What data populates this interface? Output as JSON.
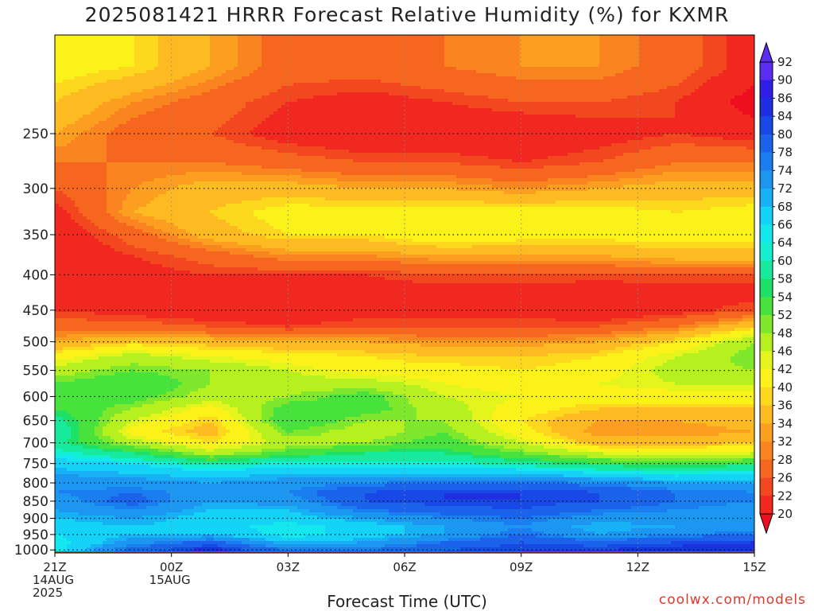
{
  "chart_data": {
    "type": "heatmap",
    "title": "2025081421 HRRR Forecast Relative Humidity (%) for KXMR",
    "xlabel": "Forecast Time (UTC)",
    "ylabel": "",
    "x_ticks": [
      {
        "hour": 0,
        "lines": [
          "21Z",
          "14AUG",
          "2025"
        ]
      },
      {
        "hour": 3,
        "lines": [
          "00Z",
          "15AUG"
        ]
      },
      {
        "hour": 6,
        "lines": [
          "03Z"
        ]
      },
      {
        "hour": 9,
        "lines": [
          "06Z"
        ]
      },
      {
        "hour": 12,
        "lines": [
          "09Z"
        ]
      },
      {
        "hour": 15,
        "lines": [
          "12Z"
        ]
      },
      {
        "hour": 18,
        "lines": [
          "15Z"
        ]
      }
    ],
    "xlim": [
      0,
      18
    ],
    "y_ticks": [
      250,
      300,
      350,
      400,
      450,
      500,
      550,
      600,
      650,
      700,
      750,
      800,
      850,
      900,
      950,
      1000
    ],
    "ylim": [
      1010,
      180
    ],
    "y_scale": "log",
    "colorbar": {
      "labels": [
        92,
        90,
        86,
        84,
        80,
        78,
        74,
        72,
        68,
        66,
        64,
        60,
        58,
        54,
        52,
        48,
        46,
        42,
        40,
        36,
        34,
        32,
        28,
        26,
        22,
        20
      ],
      "colors": [
        "#5a2df0",
        "#2f1ee6",
        "#1d2fe0",
        "#1848e6",
        "#1a63ea",
        "#1a7ef0",
        "#1b97f2",
        "#17b2f5",
        "#15d2f7",
        "#14e8ee",
        "#13f0d0",
        "#17ea9c",
        "#1fe066",
        "#47e23c",
        "#7fe82c",
        "#b6f01f",
        "#e3f51c",
        "#fbf21a",
        "#fdd81e",
        "#fdbb21",
        "#fc9f21",
        "#f98420",
        "#f6661f",
        "#f3481f",
        "#f0281f",
        "#ed0f20"
      ]
    },
    "grid": true,
    "rh_profiles": [
      {
        "pressure": [
          200,
          225,
          250,
          275,
          300,
          325,
          350,
          375,
          400,
          425,
          450,
          475,
          500,
          525,
          550,
          575,
          600,
          625,
          650,
          675,
          700,
          725,
          750,
          775,
          800,
          825,
          850,
          875,
          900,
          925,
          950,
          975,
          1000
        ]
      },
      {
        "hour": 0,
        "rh": [
          44,
          40,
          36,
          32,
          28,
          24,
          22,
          22,
          22,
          24,
          26,
          30,
          36,
          44,
          50,
          54,
          56,
          58,
          62,
          64,
          62,
          66,
          70,
          74,
          76,
          78,
          76,
          74,
          72,
          70,
          68,
          66,
          66
        ]
      },
      {
        "hour": 2,
        "rh": [
          42,
          34,
          30,
          32,
          34,
          36,
          30,
          26,
          24,
          22,
          24,
          30,
          40,
          50,
          54,
          58,
          56,
          52,
          48,
          44,
          50,
          60,
          68,
          72,
          76,
          80,
          82,
          78,
          74,
          72,
          72,
          76,
          82
        ]
      },
      {
        "hour": 4,
        "rh": [
          36,
          30,
          28,
          32,
          38,
          40,
          38,
          30,
          26,
          22,
          22,
          28,
          38,
          46,
          52,
          52,
          50,
          44,
          40,
          38,
          42,
          50,
          62,
          70,
          74,
          76,
          74,
          72,
          70,
          70,
          72,
          82,
          88
        ]
      },
      {
        "hour": 6,
        "rh": [
          30,
          26,
          24,
          30,
          38,
          44,
          42,
          34,
          26,
          22,
          22,
          26,
          36,
          44,
          48,
          50,
          52,
          56,
          58,
          54,
          50,
          56,
          66,
          72,
          76,
          78,
          76,
          72,
          70,
          66,
          66,
          72,
          80
        ]
      },
      {
        "hour": 8,
        "rh": [
          30,
          24,
          22,
          28,
          36,
          44,
          42,
          34,
          26,
          24,
          24,
          28,
          36,
          42,
          44,
          50,
          56,
          56,
          52,
          50,
          52,
          60,
          66,
          72,
          78,
          84,
          84,
          80,
          74,
          70,
          70,
          74,
          80
        ]
      },
      {
        "hour": 10,
        "rh": [
          32,
          26,
          22,
          28,
          36,
          44,
          46,
          36,
          28,
          24,
          24,
          28,
          34,
          40,
          44,
          46,
          48,
          50,
          52,
          54,
          56,
          60,
          66,
          72,
          80,
          86,
          86,
          82,
          78,
          74,
          74,
          80,
          84
        ]
      },
      {
        "hour": 12,
        "rh": [
          34,
          28,
          22,
          26,
          34,
          44,
          44,
          36,
          28,
          24,
          24,
          28,
          34,
          40,
          42,
          44,
          46,
          44,
          42,
          44,
          48,
          54,
          62,
          72,
          80,
          86,
          86,
          84,
          80,
          78,
          80,
          84,
          86
        ]
      },
      {
        "hour": 14,
        "rh": [
          34,
          28,
          24,
          28,
          36,
          44,
          44,
          36,
          28,
          22,
          22,
          28,
          36,
          42,
          44,
          46,
          44,
          40,
          36,
          34,
          38,
          48,
          58,
          68,
          78,
          84,
          84,
          80,
          76,
          72,
          74,
          82,
          86
        ]
      },
      {
        "hour": 16,
        "rh": [
          30,
          26,
          26,
          32,
          38,
          42,
          44,
          38,
          28,
          24,
          24,
          32,
          42,
          48,
          50,
          48,
          44,
          40,
          36,
          34,
          38,
          46,
          56,
          66,
          74,
          80,
          80,
          78,
          76,
          74,
          78,
          84,
          88
        ]
      },
      {
        "hour": 18,
        "rh": [
          24,
          20,
          24,
          32,
          38,
          44,
          44,
          38,
          28,
          24,
          28,
          40,
          52,
          54,
          52,
          48,
          44,
          40,
          38,
          36,
          40,
          48,
          58,
          68,
          74,
          78,
          78,
          76,
          74,
          74,
          80,
          86,
          90
        ]
      }
    ]
  },
  "credit": "coolwx.com/models"
}
